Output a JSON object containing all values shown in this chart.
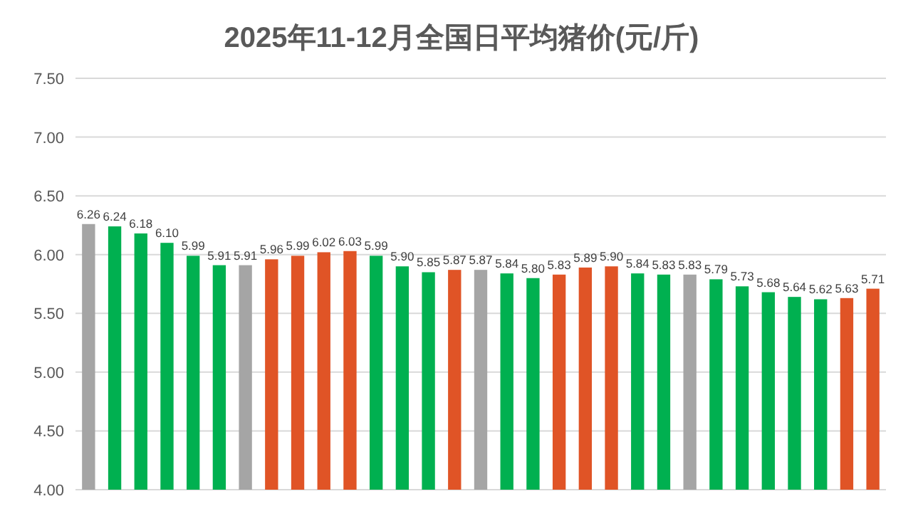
{
  "chart_data": {
    "type": "bar",
    "title": "2025年11-12月全国日平均猪价(元/斤)",
    "categories": [
      null,
      null,
      null,
      null,
      null,
      null,
      null,
      null,
      null,
      null,
      null,
      null,
      null,
      null,
      null,
      null,
      null,
      null,
      null,
      null,
      null,
      null,
      null,
      null,
      null,
      null,
      null,
      null,
      null,
      null,
      null
    ],
    "values": [
      6.26,
      6.24,
      6.18,
      6.1,
      5.99,
      5.91,
      5.91,
      5.96,
      5.99,
      6.02,
      6.03,
      5.99,
      5.9,
      5.85,
      5.87,
      5.87,
      5.84,
      5.8,
      5.83,
      5.89,
      5.9,
      5.84,
      5.83,
      5.83,
      5.79,
      5.73,
      5.68,
      5.64,
      5.62,
      5.63,
      5.71
    ],
    "value_labels": [
      "6.26",
      "6.24",
      "6.18",
      "6.10",
      "5.99",
      "5.91",
      "5.91",
      "5.96",
      "5.99",
      "6.02",
      "6.03",
      "5.99",
      "5.90",
      "5.85",
      "5.87",
      "5.87",
      "5.84",
      "5.80",
      "5.83",
      "5.89",
      "5.90",
      "5.84",
      "5.83",
      "5.83",
      "5.79",
      "5.73",
      "5.68",
      "5.64",
      "5.62",
      "5.63",
      "5.71"
    ],
    "colors": [
      "#a5a5a5",
      "#00b050",
      "#00b050",
      "#00b050",
      "#00b050",
      "#00b050",
      "#a5a5a5",
      "#e05426",
      "#e05426",
      "#e05426",
      "#e05426",
      "#00b050",
      "#00b050",
      "#00b050",
      "#e05426",
      "#a5a5a5",
      "#00b050",
      "#00b050",
      "#e05426",
      "#e05426",
      "#e05426",
      "#00b050",
      "#00b050",
      "#a5a5a5",
      "#00b050",
      "#00b050",
      "#00b050",
      "#00b050",
      "#00b050",
      "#e05426",
      "#e05426"
    ],
    "ylim": [
      4,
      7.5
    ],
    "yticks": [
      {
        "value": 4,
        "label": "4.00"
      },
      {
        "value": 4.5,
        "label": "4.50"
      },
      {
        "value": 5,
        "label": "5.00"
      },
      {
        "value": 5.5,
        "label": "5.50"
      },
      {
        "value": 6,
        "label": "6.00"
      },
      {
        "value": 6.5,
        "label": "6.50"
      },
      {
        "value": 7,
        "label": "7.00"
      },
      {
        "value": 7.5,
        "label": "7.50"
      }
    ],
    "grid": "y"
  }
}
